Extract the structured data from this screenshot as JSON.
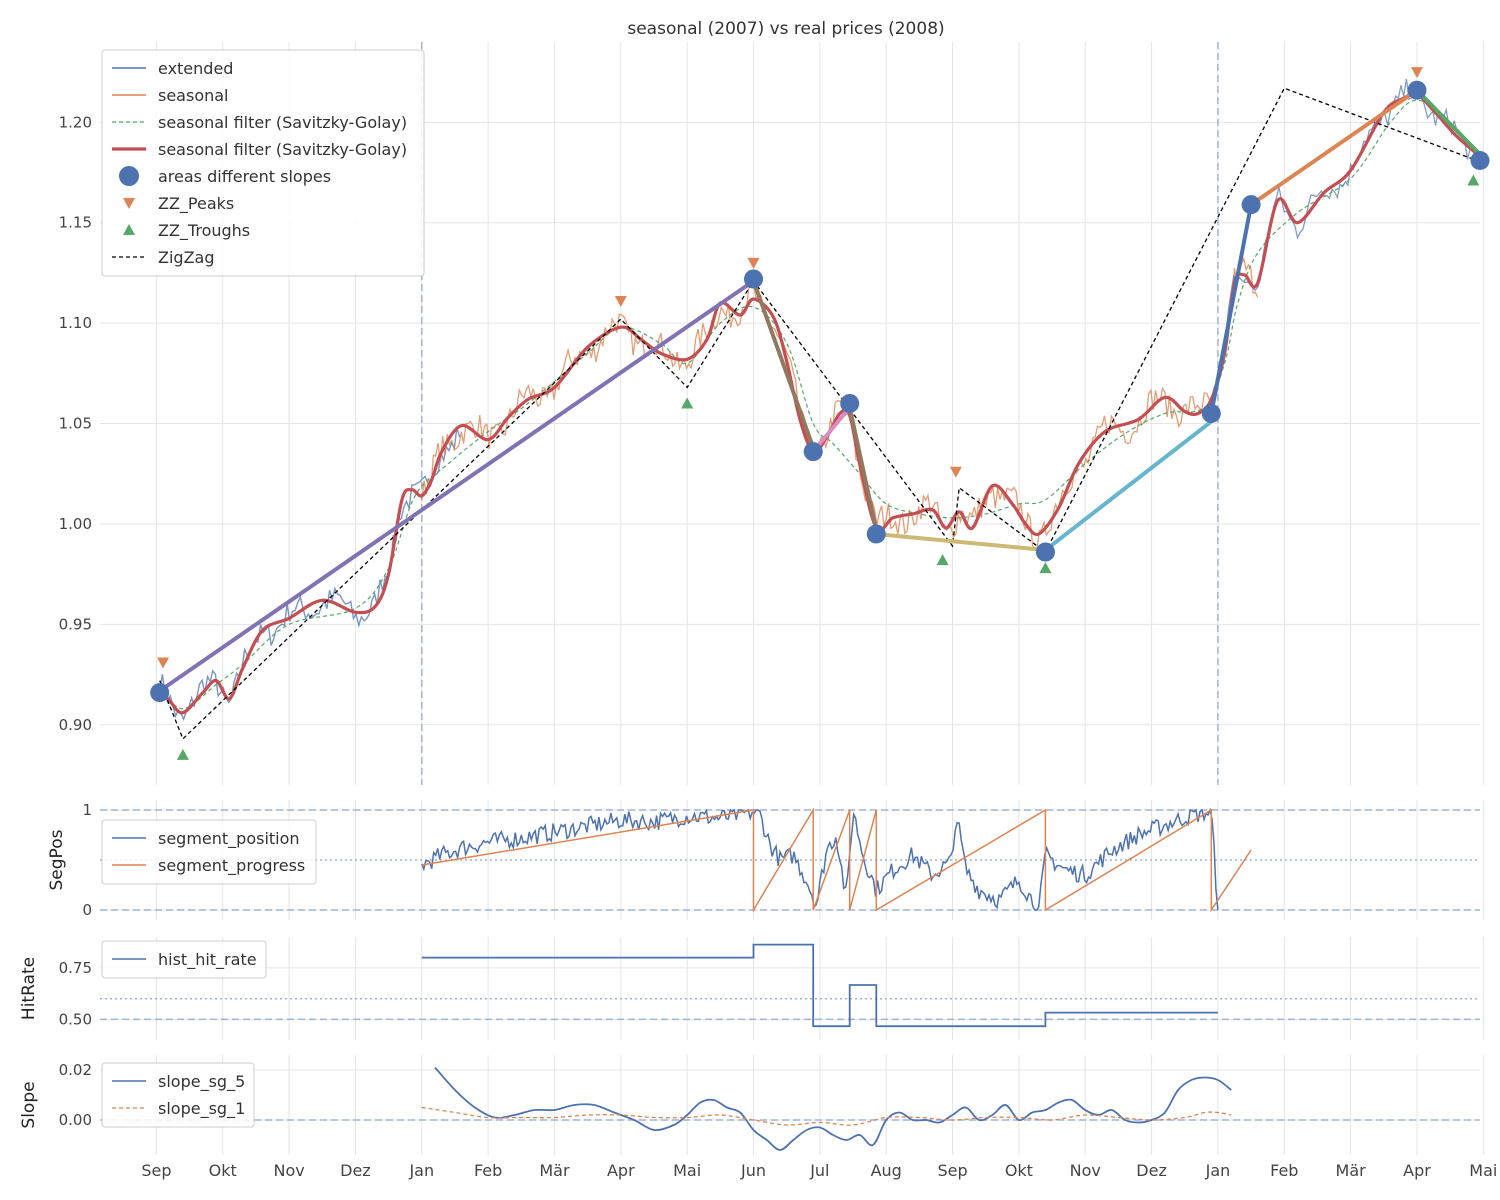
{
  "colors": {
    "blue": "#4c72b0",
    "orange": "#dd8452",
    "green": "#55a868",
    "red": "#c44e52",
    "purple": "#8172b3",
    "brown": "#937860",
    "pink": "#da8bc3",
    "olive": "#ccb974",
    "cyan": "#64b5cd",
    "grid": "#e5e5e5",
    "refline": "#9fb3d3",
    "text": "#333333"
  },
  "chart_data": [
    {
      "id": "main",
      "type": "line",
      "title": "seasonal (2007) vs real prices (2008)",
      "xlabel": "",
      "ylabel": "",
      "x_unit": "months since 1 Sep 2007",
      "xlim": [
        -0.85,
        19.95
      ],
      "ylim": [
        0.87,
        1.24
      ],
      "yticks": [
        0.9,
        0.95,
        1.0,
        1.05,
        1.1,
        1.15,
        1.2
      ],
      "ytick_labels": [
        "0.90",
        "0.95",
        "1.00",
        "1.05",
        "1.10",
        "1.15",
        "1.20"
      ],
      "vlines": [
        4.0,
        16.0
      ],
      "legend_position": "upper-left",
      "legend": [
        "extended",
        "seasonal",
        "seasonal filter (Savitzky-Golay)",
        "seasonal filter (Savitzky-Golay)",
        "areas different slopes",
        "ZZ_Peaks",
        "ZZ_Troughs",
        "ZigZag"
      ],
      "zigzag": {
        "x": [
          0.05,
          0.4,
          7.0,
          8.0,
          9.0,
          12.0,
          12.1,
          13.4,
          17.0,
          19.9
        ],
        "y": [
          0.922,
          0.893,
          1.102,
          1.068,
          1.121,
          0.989,
          1.018,
          0.986,
          1.217,
          1.181
        ]
      },
      "peaks": {
        "x": [
          0.1,
          7.0,
          9.0,
          12.05,
          19.0
        ],
        "y": [
          0.931,
          1.111,
          1.13,
          1.026,
          1.225
        ]
      },
      "troughs": {
        "x": [
          0.4,
          8.0,
          11.85,
          13.4,
          19.85
        ],
        "y": [
          0.885,
          1.06,
          0.982,
          0.978,
          1.171
        ]
      },
      "slope_points": {
        "x": [
          0.05,
          9.0,
          9.9,
          10.45,
          10.85,
          13.4,
          15.9,
          16.5,
          19.0,
          19.95
        ],
        "y": [
          0.916,
          1.122,
          1.036,
          1.06,
          0.995,
          0.986,
          1.055,
          1.159,
          1.216,
          1.181
        ]
      },
      "slope_segments": [
        {
          "x": [
            0.1,
            9.0
          ],
          "y": [
            0.918,
            1.121
          ],
          "color": "purple"
        },
        {
          "x": [
            9.0,
            9.9
          ],
          "y": [
            1.121,
            1.038
          ],
          "color": "brown"
        },
        {
          "x": [
            9.9,
            10.45
          ],
          "y": [
            1.036,
            1.058
          ],
          "color": "pink"
        },
        {
          "x": [
            10.45,
            10.85
          ],
          "y": [
            1.058,
            0.997
          ],
          "color": "brown"
        },
        {
          "x": [
            10.85,
            13.4
          ],
          "y": [
            0.995,
            0.987
          ],
          "color": "olive"
        },
        {
          "x": [
            13.4,
            15.9
          ],
          "y": [
            0.987,
            1.051
          ],
          "color": "cyan"
        },
        {
          "x": [
            15.9,
            16.5
          ],
          "y": [
            1.055,
            1.159
          ],
          "color": "blue"
        },
        {
          "x": [
            16.5,
            19.0
          ],
          "y": [
            1.159,
            1.216
          ],
          "color": "orange"
        },
        {
          "x": [
            19.0,
            19.95
          ],
          "y": [
            1.216,
            1.184
          ],
          "color": "green"
        }
      ],
      "smooth_anchor": {
        "x": [
          0.05,
          0.2,
          0.4,
          0.7,
          0.9,
          1.1,
          1.3,
          1.6,
          2.0,
          2.5,
          3.0,
          3.3,
          3.5,
          3.7,
          3.85,
          4.0,
          4.15,
          4.3,
          4.6,
          5.0,
          5.3,
          5.6,
          6.0,
          6.5,
          7.0,
          7.3,
          7.6,
          8.0,
          8.3,
          8.5,
          8.8,
          9.0,
          9.3,
          9.5,
          9.7,
          9.9,
          10.1,
          10.3,
          10.45,
          10.6,
          10.85,
          11.1,
          11.4,
          11.7,
          11.9,
          12.1,
          12.3,
          12.6,
          12.9,
          13.1,
          13.3,
          13.6,
          13.9,
          14.3,
          14.8,
          15.2,
          15.5,
          15.7,
          15.9,
          16.1,
          16.25,
          16.4,
          16.6,
          16.9,
          17.2,
          17.6,
          18.0,
          18.5,
          18.8,
          19.0,
          19.3,
          19.6,
          19.95
        ],
        "y": [
          0.918,
          0.912,
          0.906,
          0.916,
          0.922,
          0.913,
          0.928,
          0.947,
          0.953,
          0.962,
          0.956,
          0.959,
          0.975,
          1.012,
          1.017,
          1.014,
          1.022,
          1.036,
          1.049,
          1.042,
          1.053,
          1.062,
          1.068,
          1.088,
          1.098,
          1.092,
          1.085,
          1.082,
          1.092,
          1.11,
          1.104,
          1.112,
          1.103,
          1.081,
          1.052,
          1.036,
          1.043,
          1.055,
          1.054,
          1.03,
          0.998,
          1.003,
          1.005,
          1.007,
          0.998,
          1.006,
          0.998,
          1.019,
          1.01,
          1.0,
          0.995,
          1.008,
          1.03,
          1.046,
          1.052,
          1.063,
          1.056,
          1.055,
          1.062,
          1.085,
          1.12,
          1.124,
          1.12,
          1.161,
          1.15,
          1.165,
          1.176,
          1.205,
          1.212,
          1.214,
          1.204,
          1.193,
          1.183
        ]
      },
      "filter_anchor": {
        "x": [
          0.05,
          0.4,
          0.9,
          1.3,
          2.0,
          3.0,
          3.5,
          3.9,
          4.4,
          5.0,
          5.6,
          6.5,
          7.0,
          7.6,
          8.0,
          8.5,
          9.0,
          9.5,
          9.9,
          10.2,
          10.6,
          11.0,
          11.5,
          12.0,
          12.5,
          13.0,
          13.4,
          14.0,
          14.6,
          15.2,
          15.8,
          16.1,
          16.3,
          16.6,
          17.2,
          18.0,
          18.6,
          19.0,
          19.5,
          19.95
        ],
        "y": [
          0.918,
          0.908,
          0.92,
          0.93,
          0.95,
          0.958,
          0.978,
          1.014,
          1.03,
          1.046,
          1.06,
          1.085,
          1.098,
          1.09,
          1.08,
          1.1,
          1.108,
          1.09,
          1.05,
          1.04,
          1.025,
          1.01,
          1.005,
          1.003,
          1.005,
          1.01,
          1.012,
          1.03,
          1.045,
          1.055,
          1.058,
          1.08,
          1.11,
          1.135,
          1.155,
          1.172,
          1.2,
          1.211,
          1.2,
          1.184
        ]
      },
      "gridx": [
        0.0,
        1.0,
        2.0,
        3.0,
        4.0,
        5.0,
        6.0,
        7.0,
        8.0,
        9.0,
        10.0,
        11.0,
        12.0,
        13.0,
        14.0,
        15.0,
        16.0,
        17.0,
        18.0,
        19.0,
        20.0
      ]
    },
    {
      "id": "segpos",
      "type": "line",
      "ylabel": "SegPos",
      "ylim": [
        -0.1,
        1.1
      ],
      "yticks": [
        0,
        1
      ],
      "ytick_labels": [
        "0",
        "1"
      ],
      "hlines_dashed": [
        0,
        1
      ],
      "hline_dotted": 0.5,
      "legend": [
        "segment_position",
        "segment_progress"
      ],
      "segment_progress": {
        "x": [
          4.0,
          9.0,
          9.0,
          9.9,
          9.9,
          10.45,
          10.45,
          10.85,
          10.85,
          13.4,
          13.4,
          15.9,
          15.9,
          16.5,
          16.5,
          19.0
        ],
        "y": [
          0.45,
          1.0,
          0.0,
          1.0,
          0.0,
          1.0,
          0.0,
          1.0,
          0.0,
          1.0,
          0.0,
          1.0,
          0.0,
          0.6,
          null,
          null
        ]
      },
      "segment_position_anchor": {
        "x": [
          4.0,
          4.3,
          4.6,
          5.0,
          5.5,
          6.0,
          6.5,
          7.0,
          7.5,
          8.0,
          8.5,
          9.0,
          9.1,
          9.25,
          9.4,
          9.6,
          9.8,
          9.95,
          10.1,
          10.25,
          10.4,
          10.5,
          10.65,
          10.85,
          11.1,
          11.4,
          11.7,
          12.0,
          12.05,
          12.2,
          12.4,
          12.7,
          13.0,
          13.3,
          13.4,
          13.7,
          14.0,
          14.4,
          14.8,
          15.2,
          15.6,
          15.9,
          16.0,
          16.1,
          16.3,
          16.5
        ],
        "y": [
          0.45,
          0.55,
          0.62,
          0.68,
          0.72,
          0.78,
          0.84,
          0.9,
          0.88,
          0.94,
          0.92,
          0.98,
          0.95,
          0.65,
          0.5,
          0.55,
          0.3,
          0.05,
          0.6,
          0.75,
          0.1,
          1.0,
          0.55,
          0.2,
          0.4,
          0.55,
          0.35,
          0.5,
          0.98,
          0.4,
          0.2,
          0.1,
          0.3,
          0.0,
          0.55,
          0.4,
          0.35,
          0.6,
          0.75,
          0.85,
          0.95,
          0.98,
          0.0,
          0.25,
          0.55,
          0.5
        ]
      }
    },
    {
      "id": "hitrate",
      "type": "line",
      "ylabel": "HitRate",
      "ylim": [
        0.4,
        0.9
      ],
      "yticks": [
        0.5,
        0.75
      ],
      "ytick_labels": [
        "0.50",
        "0.75"
      ],
      "hlines_dashed": [
        0.5
      ],
      "hline_dotted": 0.6,
      "legend": [
        "hist_hit_rate"
      ],
      "hist_hit_rate": {
        "x": [
          4.0,
          9.0,
          9.0,
          9.9,
          9.9,
          10.45,
          10.45,
          10.85,
          10.85,
          13.4,
          13.4,
          16.0
        ],
        "y": [
          0.8,
          0.8,
          0.863,
          0.863,
          0.467,
          0.467,
          0.667,
          0.667,
          0.467,
          0.467,
          0.533,
          0.533
        ]
      }
    },
    {
      "id": "slope",
      "type": "line",
      "ylabel": "Slope",
      "ylim": [
        -0.014,
        0.026
      ],
      "yticks": [
        0.0,
        0.02
      ],
      "ytick_labels": [
        "0.00",
        "0.02"
      ],
      "hlines_dashed": [
        0.0
      ],
      "legend": [
        "slope_sg_5",
        "slope_sg_1"
      ],
      "slope_sg_5": {
        "x": [
          4.2,
          4.5,
          4.8,
          5.1,
          5.4,
          5.7,
          6.0,
          6.3,
          6.6,
          6.9,
          7.2,
          7.5,
          7.8,
          8.0,
          8.2,
          8.4,
          8.6,
          8.8,
          9.0,
          9.2,
          9.4,
          9.6,
          9.8,
          10.0,
          10.2,
          10.4,
          10.6,
          10.8,
          11.0,
          11.2,
          11.4,
          11.6,
          11.8,
          12.0,
          12.2,
          12.4,
          12.6,
          12.8,
          13.0,
          13.2,
          13.4,
          13.6,
          13.8,
          14.0,
          14.2,
          14.4,
          14.6,
          14.8,
          15.0,
          15.2,
          15.4,
          15.6,
          15.8,
          16.0,
          16.2,
          16.4,
          16.6,
          16.8,
          17.0
        ],
        "y": [
          0.021,
          0.012,
          0.005,
          0.001,
          0.002,
          0.004,
          0.004,
          0.006,
          0.006,
          0.003,
          0.0,
          -0.004,
          -0.002,
          0.002,
          0.007,
          0.008,
          0.005,
          0.003,
          -0.004,
          -0.008,
          -0.012,
          -0.008,
          -0.004,
          -0.003,
          -0.006,
          -0.008,
          -0.006,
          -0.01,
          0.0,
          0.003,
          0.0,
          0.0,
          -0.001,
          0.002,
          0.005,
          0.0,
          0.002,
          0.006,
          0.0,
          0.003,
          0.004,
          0.007,
          0.008,
          0.004,
          0.002,
          0.004,
          0.0,
          -0.001,
          0.0,
          0.003,
          0.012,
          0.016,
          0.017,
          0.016,
          0.012,
          null,
          null,
          null,
          null
        ]
      },
      "slope_sg_1": {
        "x": [
          4.0,
          4.5,
          5.0,
          5.5,
          6.0,
          6.5,
          7.0,
          7.5,
          8.0,
          8.5,
          9.0,
          9.5,
          10.0,
          10.5,
          11.0,
          11.5,
          12.0,
          12.5,
          13.0,
          13.5,
          14.0,
          14.5,
          15.0,
          15.5,
          15.8,
          16.0,
          16.2,
          16.5,
          17.0
        ],
        "y": [
          0.005,
          0.003,
          0.001,
          0.001,
          0.001,
          0.002,
          0.002,
          0.001,
          0.001,
          0.002,
          0.0,
          -0.002,
          -0.001,
          -0.002,
          0.001,
          0.001,
          0.0,
          0.001,
          0.001,
          0.0,
          0.002,
          0.001,
          0.0,
          0.001,
          0.003,
          0.003,
          0.002,
          null,
          null
        ]
      }
    }
  ],
  "x_ticks": {
    "values": [
      0.0,
      1.0,
      2.0,
      3.0,
      4.0,
      5.0,
      6.0,
      7.0,
      8.0,
      9.0,
      10.0,
      11.0,
      12.0,
      13.0,
      14.0,
      15.0,
      16.0,
      17.0,
      18.0,
      19.0,
      20.0
    ],
    "labels": [
      "Sep",
      "Okt",
      "Nov",
      "Dez",
      "Jan",
      "Feb",
      "Mär",
      "Apr",
      "Mai",
      "Jun",
      "Jul",
      "Aug",
      "Sep",
      "Okt",
      "Nov",
      "Dez",
      "Jan",
      "Feb",
      "Mär",
      "Apr",
      "Mai"
    ]
  }
}
